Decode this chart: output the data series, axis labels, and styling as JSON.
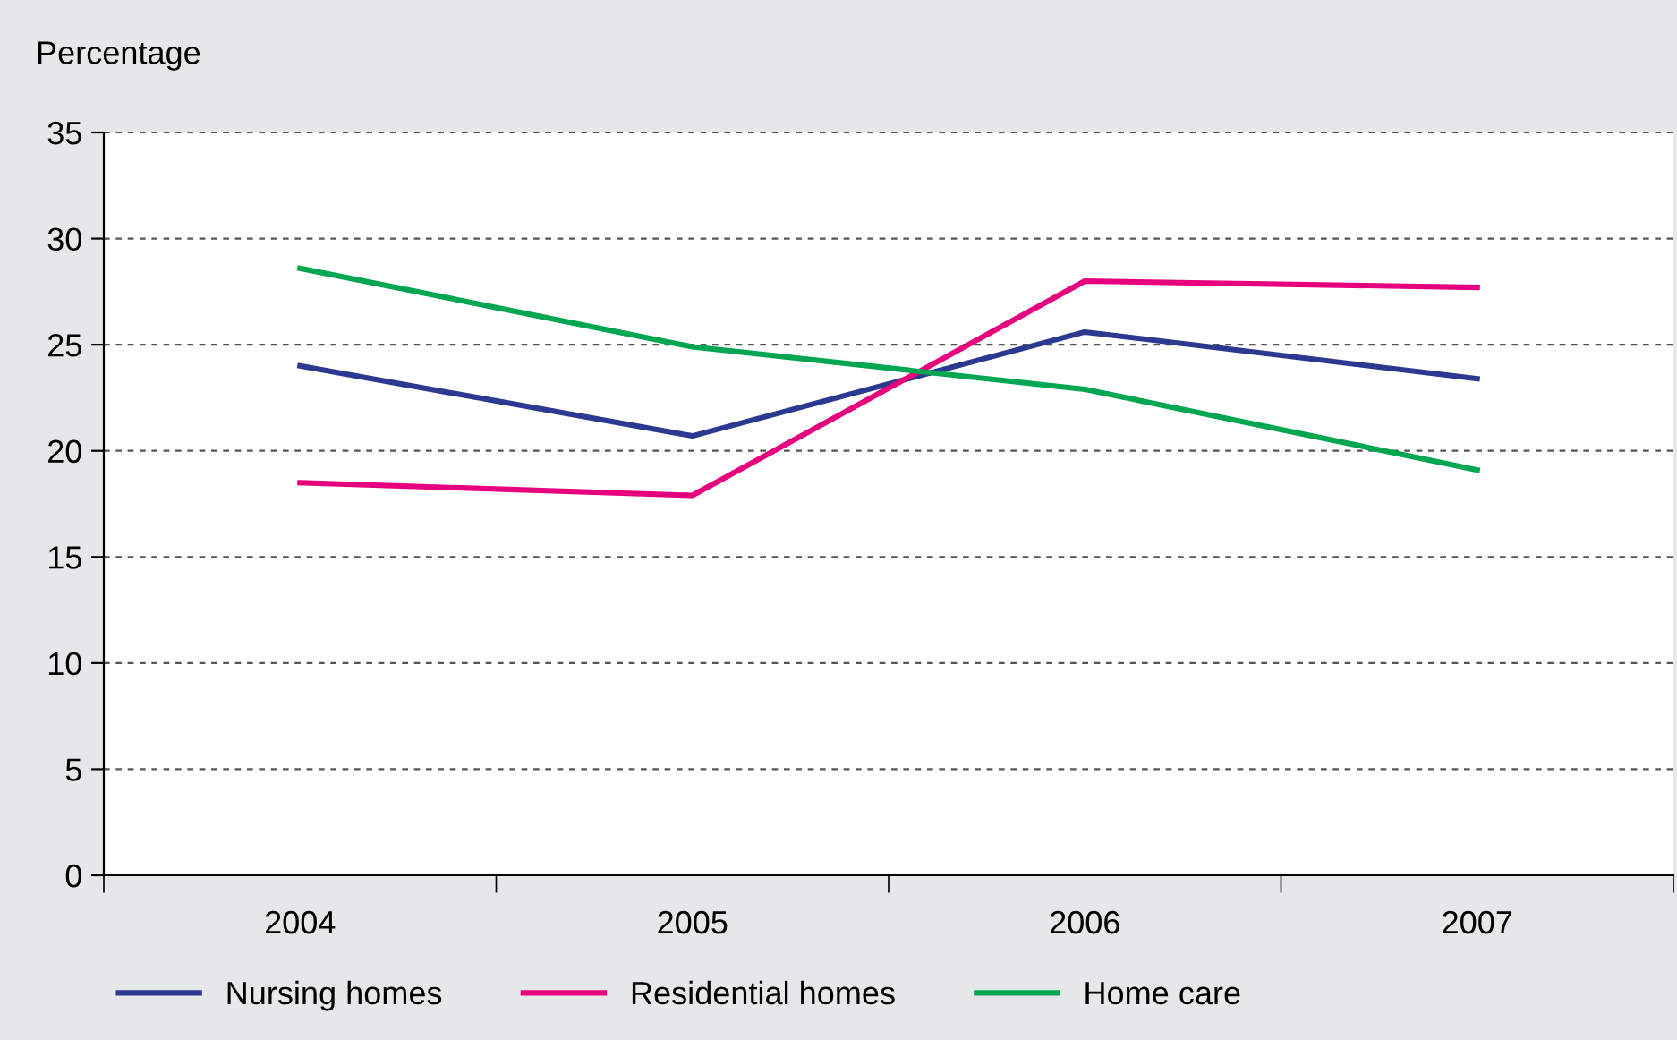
{
  "chart_data": {
    "type": "line",
    "ylabel": "Percentage",
    "categories": [
      "2004",
      "2005",
      "2006",
      "2007"
    ],
    "series": [
      {
        "name": "Nursing homes",
        "color": "#2b3990",
        "values": [
          24.0,
          20.7,
          25.6,
          23.4
        ]
      },
      {
        "name": "Residential homes",
        "color": "#e6007e",
        "values": [
          18.5,
          17.9,
          28.0,
          27.7
        ]
      },
      {
        "name": "Home care",
        "color": "#00a650",
        "values": [
          28.6,
          24.9,
          22.9,
          19.1
        ]
      }
    ],
    "ylim": [
      0,
      35
    ],
    "yticks": [
      0,
      5,
      10,
      15,
      20,
      25,
      30,
      35
    ],
    "grid": "y",
    "legend": "bottom",
    "marker": "none",
    "line_style": "solid"
  }
}
